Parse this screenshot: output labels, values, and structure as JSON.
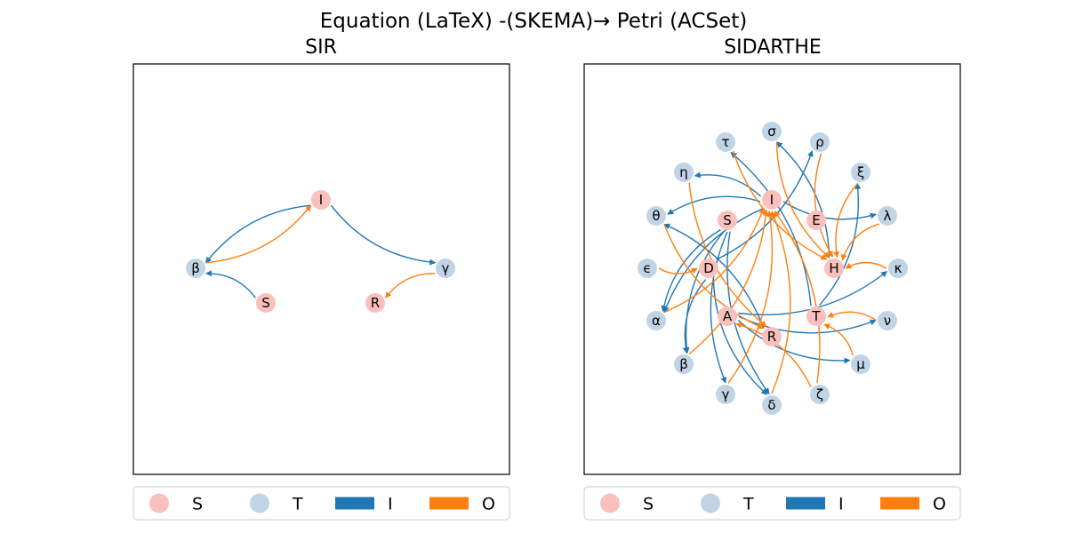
{
  "title": "Equation (LaTeX) -(SKEMA)→ Petri (ACSet)",
  "colors": {
    "species": "#f9c0bd",
    "transition": "#c1d4e6",
    "input_arc": "#1f77b4",
    "output_arc": "#ff7f0e"
  },
  "legend": [
    {
      "label": "S",
      "kind": "species"
    },
    {
      "label": "T",
      "kind": "transition"
    },
    {
      "label": "I",
      "kind": "input_arc"
    },
    {
      "label": "O",
      "kind": "output_arc"
    }
  ],
  "panels": [
    {
      "title": "SIR",
      "nodes": [
        {
          "id": "I",
          "label": "I",
          "kind": "species"
        },
        {
          "id": "S",
          "label": "S",
          "kind": "species"
        },
        {
          "id": "R",
          "label": "R",
          "kind": "species"
        },
        {
          "id": "beta",
          "label": "β",
          "kind": "transition"
        },
        {
          "id": "gamma",
          "label": "γ",
          "kind": "transition"
        }
      ],
      "edges": [
        {
          "from": "I",
          "to": "beta",
          "kind": "input_arc"
        },
        {
          "from": "S",
          "to": "beta",
          "kind": "input_arc"
        },
        {
          "from": "I",
          "to": "gamma",
          "kind": "input_arc"
        },
        {
          "from": "beta",
          "to": "I",
          "kind": "output_arc"
        },
        {
          "from": "gamma",
          "to": "R",
          "kind": "output_arc"
        }
      ]
    },
    {
      "title": "SIDARTHE",
      "nodes": [
        {
          "id": "I",
          "label": "I",
          "kind": "species"
        },
        {
          "id": "S",
          "label": "S",
          "kind": "species"
        },
        {
          "id": "E",
          "label": "E",
          "kind": "species"
        },
        {
          "id": "D",
          "label": "D",
          "kind": "species"
        },
        {
          "id": "H",
          "label": "H",
          "kind": "species"
        },
        {
          "id": "A",
          "label": "A",
          "kind": "species"
        },
        {
          "id": "T",
          "label": "T",
          "kind": "species"
        },
        {
          "id": "R",
          "label": "R",
          "kind": "species"
        },
        {
          "id": "tau",
          "label": "τ",
          "kind": "transition"
        },
        {
          "id": "sigma",
          "label": "σ",
          "kind": "transition"
        },
        {
          "id": "rho",
          "label": "ρ",
          "kind": "transition"
        },
        {
          "id": "eta",
          "label": "η",
          "kind": "transition"
        },
        {
          "id": "xi",
          "label": "ξ",
          "kind": "transition"
        },
        {
          "id": "theta",
          "label": "θ",
          "kind": "transition"
        },
        {
          "id": "lambda",
          "label": "λ",
          "kind": "transition"
        },
        {
          "id": "epsilon",
          "label": "ϵ",
          "kind": "transition"
        },
        {
          "id": "kappa",
          "label": "κ",
          "kind": "transition"
        },
        {
          "id": "alpha",
          "label": "α",
          "kind": "transition"
        },
        {
          "id": "nu",
          "label": "ν",
          "kind": "transition"
        },
        {
          "id": "beta",
          "label": "β",
          "kind": "transition"
        },
        {
          "id": "mu",
          "label": "μ",
          "kind": "transition"
        },
        {
          "id": "gamma",
          "label": "γ",
          "kind": "transition"
        },
        {
          "id": "delta",
          "label": "δ",
          "kind": "transition"
        },
        {
          "id": "zeta",
          "label": "ζ",
          "kind": "transition"
        }
      ],
      "edges": [
        {
          "from": "I",
          "to": "eta",
          "kind": "input_arc"
        },
        {
          "from": "I",
          "to": "theta",
          "kind": "input_arc"
        },
        {
          "from": "I",
          "to": "lambda",
          "kind": "input_arc"
        },
        {
          "from": "I",
          "to": "alpha",
          "kind": "input_arc"
        },
        {
          "from": "S",
          "to": "alpha",
          "kind": "input_arc"
        },
        {
          "from": "S",
          "to": "beta",
          "kind": "input_arc"
        },
        {
          "from": "S",
          "to": "gamma",
          "kind": "input_arc"
        },
        {
          "from": "S",
          "to": "delta",
          "kind": "input_arc"
        },
        {
          "from": "D",
          "to": "rho",
          "kind": "input_arc"
        },
        {
          "from": "D",
          "to": "beta",
          "kind": "input_arc"
        },
        {
          "from": "D",
          "to": "delta",
          "kind": "input_arc"
        },
        {
          "from": "A",
          "to": "kappa",
          "kind": "input_arc"
        },
        {
          "from": "A",
          "to": "mu",
          "kind": "input_arc"
        },
        {
          "from": "A",
          "to": "nu",
          "kind": "input_arc"
        },
        {
          "from": "R",
          "to": "theta",
          "kind": "input_arc"
        },
        {
          "from": "T",
          "to": "xi",
          "kind": "input_arc"
        },
        {
          "from": "T",
          "to": "tau",
          "kind": "input_arc"
        },
        {
          "from": "H",
          "to": "sigma",
          "kind": "input_arc"
        },
        {
          "from": "eta",
          "to": "R",
          "kind": "output_arc"
        },
        {
          "from": "tau",
          "to": "H",
          "kind": "output_arc"
        },
        {
          "from": "sigma",
          "to": "H",
          "kind": "output_arc"
        },
        {
          "from": "rho",
          "to": "H",
          "kind": "output_arc"
        },
        {
          "from": "xi",
          "to": "H",
          "kind": "output_arc"
        },
        {
          "from": "lambda",
          "to": "H",
          "kind": "output_arc"
        },
        {
          "from": "kappa",
          "to": "H",
          "kind": "output_arc"
        },
        {
          "from": "nu",
          "to": "T",
          "kind": "output_arc"
        },
        {
          "from": "mu",
          "to": "T",
          "kind": "output_arc"
        },
        {
          "from": "epsilon",
          "to": "D",
          "kind": "output_arc"
        },
        {
          "from": "alpha",
          "to": "I",
          "kind": "output_arc"
        },
        {
          "from": "beta",
          "to": "I",
          "kind": "output_arc"
        },
        {
          "from": "gamma",
          "to": "I",
          "kind": "output_arc"
        },
        {
          "from": "delta",
          "to": "I",
          "kind": "output_arc"
        },
        {
          "from": "zeta",
          "to": "I",
          "kind": "output_arc"
        },
        {
          "from": "zeta",
          "to": "A",
          "kind": "output_arc"
        },
        {
          "from": "theta",
          "to": "R",
          "kind": "output_arc"
        }
      ]
    }
  ]
}
